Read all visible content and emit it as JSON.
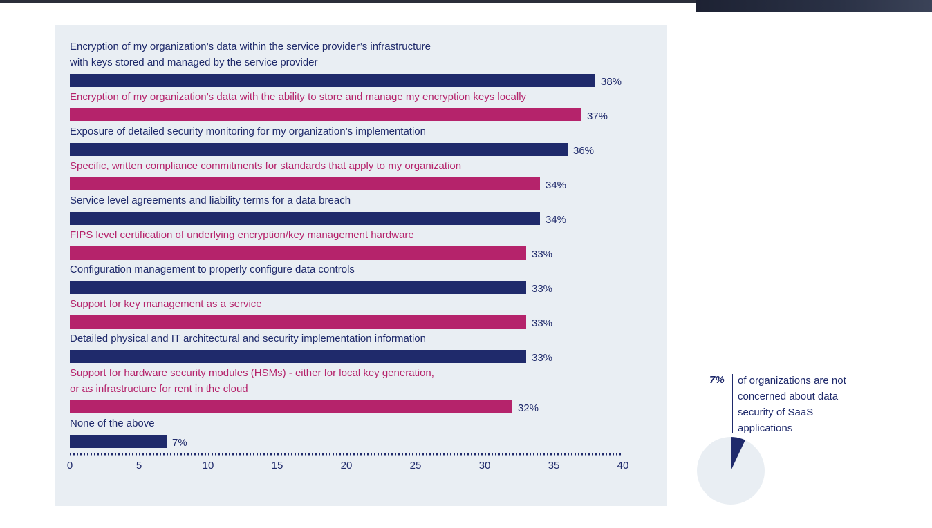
{
  "chart_data": {
    "type": "bar",
    "orientation": "horizontal",
    "categories": [
      [
        "Encryption of my organization’s data within the service provider’s infrastructure",
        "with keys stored and managed by the service provider"
      ],
      [
        "Encryption of my organization’s data with the ability to store and manage my encryption keys locally"
      ],
      [
        "Exposure of detailed security monitoring for my organization’s implementation"
      ],
      [
        "Specific, written compliance commitments for standards that apply to my organization"
      ],
      [
        "Service level agreements and liability terms for a data breach"
      ],
      [
        "FIPS level certification of underlying encryption/key management hardware"
      ],
      [
        "Configuration management to properly configure data controls"
      ],
      [
        "Support for key management as a service"
      ],
      [
        "Detailed physical and IT architectural and security implementation information"
      ],
      [
        "Support for hardware security modules (HSMs) - either for local key generation,",
        "or as infrastructure for rent in the cloud"
      ],
      [
        "None of the above"
      ]
    ],
    "values": [
      38,
      37,
      36,
      34,
      34,
      33,
      33,
      33,
      33,
      32,
      7
    ],
    "value_labels": [
      "38%",
      "37%",
      "36%",
      "34%",
      "34%",
      "33%",
      "33%",
      "33%",
      "33%",
      "32%",
      "7%"
    ],
    "bar_colors": [
      "#1f2a6b",
      "#b5236b",
      "#1f2a6b",
      "#b5236b",
      "#1f2a6b",
      "#b5236b",
      "#1f2a6b",
      "#b5236b",
      "#1f2a6b",
      "#b5236b",
      "#1f2a6b"
    ],
    "x_ticks": [
      0,
      5,
      10,
      15,
      20,
      25,
      30,
      35,
      40
    ],
    "xlim": [
      0,
      40
    ],
    "title": "",
    "xlabel": "",
    "ylabel": "",
    "grid": false,
    "legend": "none"
  },
  "callout": {
    "percent": "7%",
    "text": "of organizations are not concerned about data security of SaaS applications",
    "pie_fraction": 0.07,
    "pie_color": "#1f2a6b",
    "pie_background": "#e9eef3"
  },
  "colors": {
    "navy": "#1f2a6b",
    "magenta": "#b5236b",
    "panel": "#e9eef3"
  }
}
